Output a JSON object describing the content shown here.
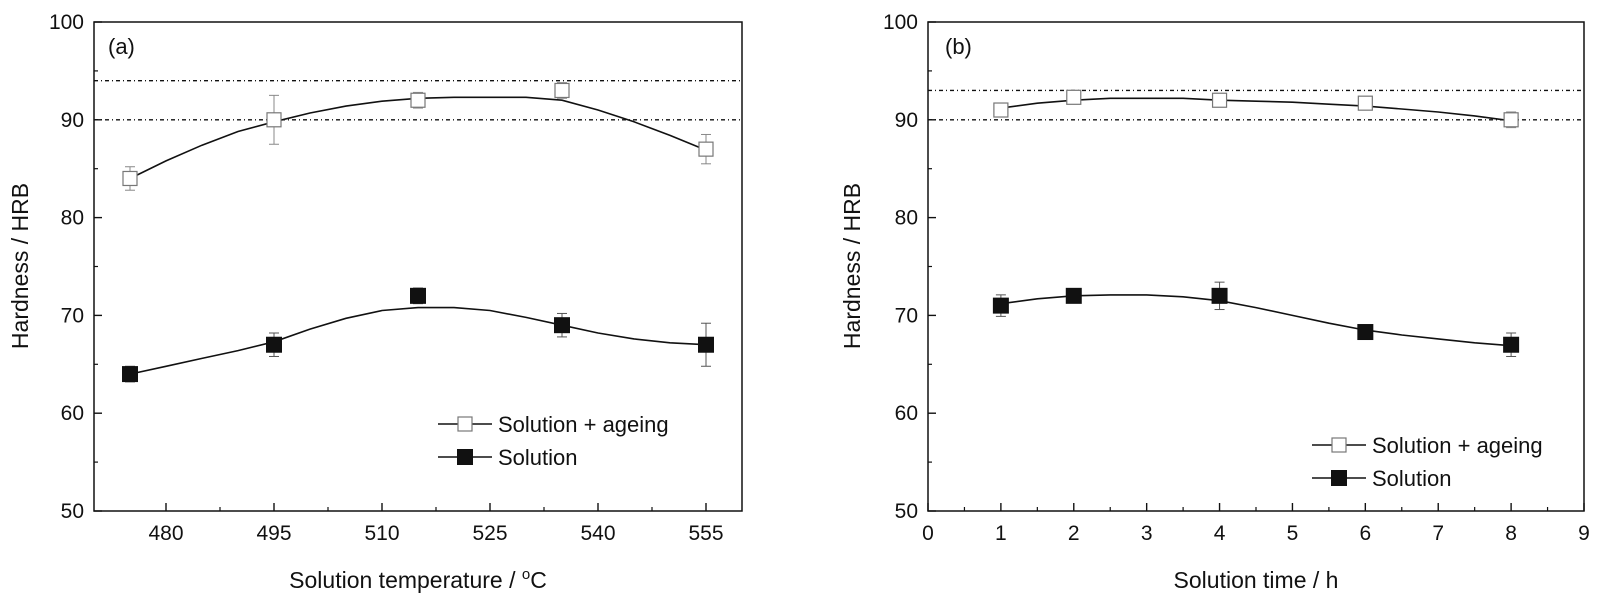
{
  "chart_data": [
    {
      "type": "line",
      "panel_label": "(a)",
      "xlabel": "Solution temperature / ",
      "xlabel_unit": "C",
      "xlabel_degree": "o",
      "ylabel": "Hardness / HRB",
      "xlim": [
        470,
        560
      ],
      "ylim": [
        50,
        100
      ],
      "xticks": [
        480,
        495,
        510,
        525,
        540,
        555
      ],
      "yticks": [
        50,
        60,
        70,
        80,
        90,
        100
      ],
      "reference_lines": [
        94,
        90
      ],
      "legend_position": "bottom-right",
      "series": [
        {
          "name": "Solution + ageing",
          "marker": "open-square",
          "x": [
            475,
            495,
            515,
            535,
            555
          ],
          "y": [
            84,
            90,
            92,
            93,
            87
          ],
          "err": [
            1.2,
            2.5,
            0.8,
            0.8,
            1.5
          ],
          "fit_x": [
            475,
            480,
            485,
            490,
            495,
            500,
            505,
            510,
            515,
            520,
            525,
            530,
            535,
            540,
            545,
            550,
            555
          ],
          "fit_y": [
            84.0,
            85.8,
            87.4,
            88.8,
            89.8,
            90.7,
            91.4,
            91.9,
            92.2,
            92.3,
            92.3,
            92.3,
            92.0,
            91.0,
            89.8,
            88.4,
            86.9
          ]
        },
        {
          "name": "Solution",
          "marker": "filled-square",
          "x": [
            475,
            495,
            515,
            535,
            555
          ],
          "y": [
            64,
            67,
            72,
            69,
            67
          ],
          "err": [
            0.8,
            1.2,
            0.8,
            1.2,
            2.2
          ],
          "fit_x": [
            475,
            480,
            485,
            490,
            495,
            500,
            505,
            510,
            515,
            520,
            525,
            530,
            535,
            540,
            545,
            550,
            555
          ],
          "fit_y": [
            64.0,
            64.8,
            65.6,
            66.4,
            67.3,
            68.6,
            69.7,
            70.5,
            70.8,
            70.8,
            70.5,
            69.8,
            69.0,
            68.2,
            67.6,
            67.2,
            67.0
          ]
        }
      ]
    },
    {
      "type": "line",
      "panel_label": "(b)",
      "xlabel": "Solution time  / h",
      "ylabel": "Hardness / HRB",
      "xlim": [
        0,
        9
      ],
      "ylim": [
        50,
        100
      ],
      "xticks": [
        0,
        1,
        2,
        3,
        4,
        5,
        6,
        7,
        8,
        9
      ],
      "yticks": [
        50,
        60,
        70,
        80,
        90,
        100
      ],
      "reference_lines": [
        93,
        90
      ],
      "legend_position": "bottom-right",
      "series": [
        {
          "name": "Solution + ageing",
          "marker": "open-square",
          "x": [
            1,
            2,
            4,
            6,
            8
          ],
          "y": [
            91,
            92.3,
            92,
            91.7,
            90
          ],
          "err": [
            0.6,
            0.5,
            0.7,
            0.5,
            0.8
          ],
          "fit_x": [
            1,
            1.5,
            2,
            2.5,
            3,
            3.5,
            4,
            4.5,
            5,
            5.5,
            6,
            6.5,
            7,
            7.5,
            8
          ],
          "fit_y": [
            91.2,
            91.7,
            92.0,
            92.2,
            92.2,
            92.2,
            92.0,
            91.9,
            91.8,
            91.6,
            91.4,
            91.1,
            90.8,
            90.4,
            89.9
          ]
        },
        {
          "name": "Solution",
          "marker": "filled-square",
          "x": [
            1,
            2,
            4,
            6,
            8
          ],
          "y": [
            71,
            72,
            72,
            68.3,
            67
          ],
          "err": [
            1.1,
            0.7,
            1.4,
            0.5,
            1.2
          ],
          "fit_x": [
            1,
            1.5,
            2,
            2.5,
            3,
            3.5,
            4,
            4.5,
            5,
            5.5,
            6,
            6.5,
            7,
            7.5,
            8
          ],
          "fit_y": [
            71.2,
            71.7,
            72.0,
            72.1,
            72.1,
            71.9,
            71.5,
            70.8,
            70.0,
            69.2,
            68.5,
            68.0,
            67.6,
            67.2,
            66.9
          ]
        }
      ]
    }
  ]
}
